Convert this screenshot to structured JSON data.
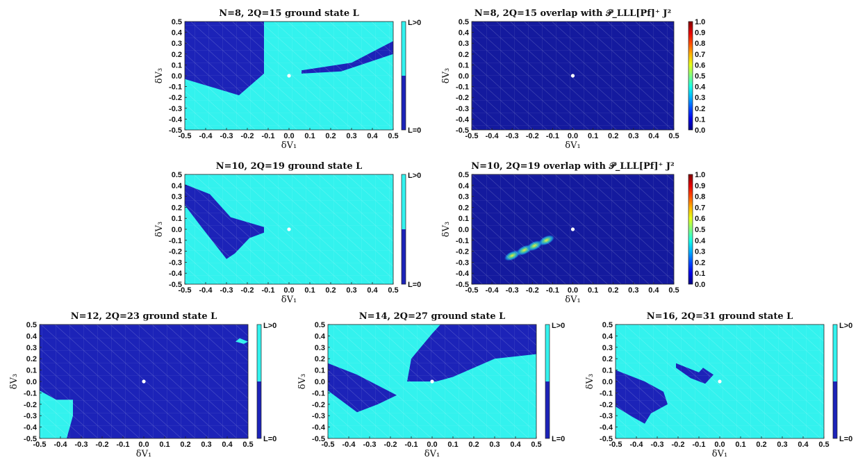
{
  "colors": {
    "cyan": "#33f2ee",
    "navy": "#1c23b8",
    "dark_navy": "#141a9e",
    "marker": "#ffffff"
  },
  "colorbar_binary": {
    "top_label": "L>0",
    "bottom_label": "L=0"
  },
  "colorbar_continuous": {
    "ticks": [
      "1.0",
      "0.9",
      "0.8",
      "0.7",
      "0.6",
      "0.5",
      "0.4",
      "0.3",
      "0.2",
      "0.1",
      "0.0"
    ],
    "colormap": "parula-like"
  },
  "axes": {
    "xlabel": "δV₁",
    "ylabel": "δV₃",
    "x_ticks": [
      "-0.5",
      "-0.4",
      "-0.3",
      "-0.2",
      "-0.1",
      "0.0",
      "0.1",
      "0.2",
      "0.3",
      "0.4",
      "0.5"
    ],
    "y_ticks": [
      "0.5",
      "0.4",
      "0.3",
      "0.2",
      "0.1",
      "0.0",
      "-0.1",
      "-0.2",
      "-0.3",
      "-0.4",
      "-0.5"
    ]
  },
  "chart_data": [
    {
      "type": "heatmap",
      "title": "N=8, 2Q=15 ground state L",
      "xlim": [
        -0.5,
        0.5
      ],
      "ylim": [
        -0.5,
        0.5
      ],
      "background": "L>0",
      "regions_L0": [
        [
          [
            -0.5,
            0.5
          ],
          [
            -0.12,
            0.5
          ],
          [
            -0.12,
            0.02
          ],
          [
            -0.24,
            -0.18
          ],
          [
            -0.5,
            -0.03
          ]
        ],
        [
          [
            0.06,
            0.05
          ],
          [
            0.3,
            0.12
          ],
          [
            0.5,
            0.32
          ],
          [
            0.5,
            0.2
          ],
          [
            0.25,
            0.04
          ],
          [
            0.06,
            0.02
          ]
        ]
      ],
      "marker": [
        0.0,
        0.0
      ]
    },
    {
      "type": "heatmap",
      "title": "N=8, 2Q=15 overlap with 𝒫_LLL[Pf]⁺ J²",
      "xlim": [
        -0.5,
        0.5
      ],
      "ylim": [
        -0.5,
        0.5
      ],
      "zlim": [
        0.0,
        1.0
      ],
      "peaks": [],
      "marker": [
        0.0,
        0.0
      ]
    },
    {
      "type": "heatmap",
      "title": "N=10, 2Q=19 ground state L",
      "xlim": [
        -0.5,
        0.5
      ],
      "ylim": [
        -0.5,
        0.5
      ],
      "background": "L>0",
      "regions_L0": [
        [
          [
            -0.5,
            0.41
          ],
          [
            -0.5,
            0.22
          ],
          [
            -0.42,
            0.02
          ],
          [
            -0.3,
            -0.27
          ],
          [
            -0.26,
            -0.22
          ],
          [
            -0.19,
            -0.08
          ],
          [
            -0.12,
            -0.03
          ],
          [
            -0.12,
            0.02
          ],
          [
            -0.28,
            0.11
          ],
          [
            -0.38,
            0.32
          ]
        ]
      ],
      "marker": [
        0.0,
        0.0
      ]
    },
    {
      "type": "heatmap",
      "title": "N=10, 2Q=19 overlap with 𝒫_LLL[Pf]⁺ J²",
      "xlim": [
        -0.5,
        0.5
      ],
      "ylim": [
        -0.5,
        0.5
      ],
      "zlim": [
        0.0,
        1.0
      ],
      "peaks": [
        {
          "x": -0.3,
          "y": -0.24,
          "z": 0.5
        },
        {
          "x": -0.24,
          "y": -0.19,
          "z": 0.55
        },
        {
          "x": -0.19,
          "y": -0.15,
          "z": 0.6
        },
        {
          "x": -0.13,
          "y": -0.1,
          "z": 0.7
        }
      ],
      "marker": [
        0.0,
        0.0
      ]
    },
    {
      "type": "heatmap",
      "title": "N=12, 2Q=23 ground state L",
      "xlim": [
        -0.5,
        0.5
      ],
      "ylim": [
        -0.5,
        0.5
      ],
      "background": "L=0",
      "regions_L1": [
        [
          [
            -0.5,
            -0.08
          ],
          [
            -0.42,
            -0.16
          ],
          [
            -0.34,
            -0.16
          ],
          [
            -0.34,
            -0.3
          ],
          [
            -0.37,
            -0.5
          ],
          [
            -0.5,
            -0.5
          ]
        ],
        [
          [
            0.44,
            0.35
          ],
          [
            0.48,
            0.33
          ],
          [
            0.5,
            0.35
          ],
          [
            0.46,
            0.38
          ]
        ]
      ],
      "marker": [
        0.0,
        0.0
      ]
    },
    {
      "type": "heatmap",
      "title": "N=14, 2Q=27 ground state L",
      "xlim": [
        -0.5,
        0.5
      ],
      "ylim": [
        -0.5,
        0.5
      ],
      "background": "L>0",
      "regions_L0": [
        [
          [
            -0.5,
            0.16
          ],
          [
            -0.36,
            0.06
          ],
          [
            -0.17,
            -0.12
          ],
          [
            -0.26,
            -0.2
          ],
          [
            -0.36,
            -0.27
          ],
          [
            -0.5,
            -0.08
          ]
        ],
        [
          [
            -0.12,
            0.0
          ],
          [
            -0.1,
            0.2
          ],
          [
            0.0,
            0.42
          ],
          [
            0.04,
            0.5
          ],
          [
            0.5,
            0.5
          ],
          [
            0.5,
            0.24
          ],
          [
            0.3,
            0.2
          ],
          [
            0.1,
            0.04
          ],
          [
            0.02,
            0.0
          ]
        ]
      ],
      "marker": [
        0.0,
        0.0
      ]
    },
    {
      "type": "heatmap",
      "title": "N=16, 2Q=31 ground state L",
      "xlim": [
        -0.5,
        0.5
      ],
      "ylim": [
        -0.5,
        0.5
      ],
      "background": "L>0",
      "regions_L0": [
        [
          [
            -0.5,
            0.1
          ],
          [
            -0.36,
            0.0
          ],
          [
            -0.27,
            -0.09
          ],
          [
            -0.25,
            -0.2
          ],
          [
            -0.33,
            -0.28
          ],
          [
            -0.36,
            -0.37
          ],
          [
            -0.42,
            -0.31
          ],
          [
            -0.5,
            -0.22
          ]
        ],
        [
          [
            -0.21,
            0.16
          ],
          [
            -0.1,
            0.08
          ],
          [
            -0.08,
            0.12
          ],
          [
            -0.03,
            0.06
          ],
          [
            -0.07,
            -0.02
          ],
          [
            -0.14,
            0.03
          ],
          [
            -0.21,
            0.12
          ]
        ]
      ],
      "marker": [
        0.0,
        0.0
      ]
    }
  ]
}
